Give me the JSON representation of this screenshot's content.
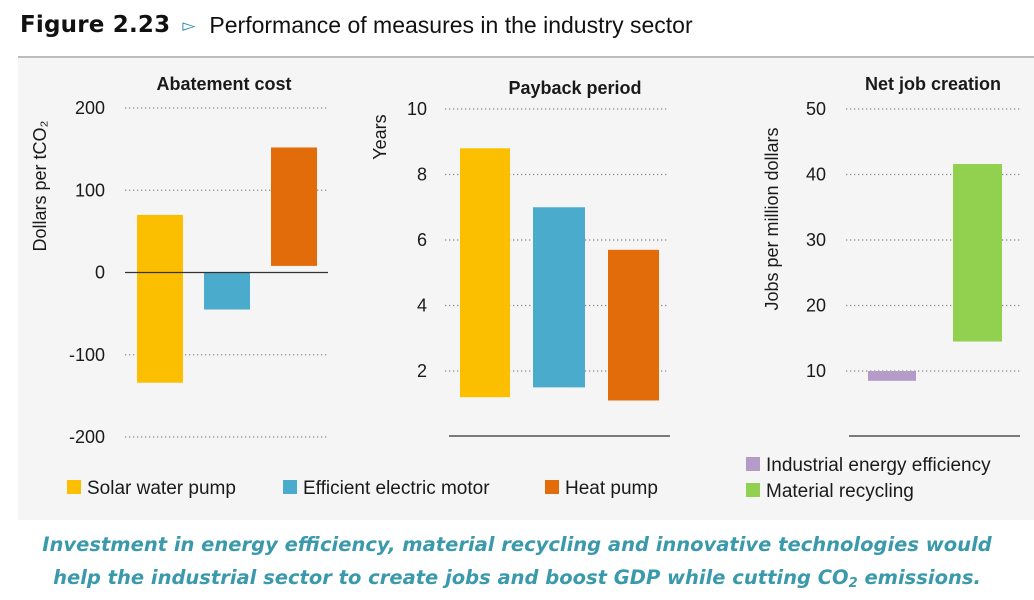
{
  "figure": {
    "number": "Figure 2.23",
    "arrow": "▻",
    "title": "Performance of measures in the industry sector"
  },
  "colors": {
    "solar_water_pump": "#fbbf00",
    "efficient_electric_motor": "#4aabcc",
    "heat_pump": "#e26b0a",
    "industrial_energy_efficiency": "#b59cc8",
    "material_recycling": "#92d050",
    "caption": "#3a9aab"
  },
  "chart_data": [
    {
      "type": "bar",
      "subtype": "floating-range",
      "title": "Abatement cost",
      "ylabel": "Dollars per tCO₂",
      "ylim": [
        -200,
        200
      ],
      "yticks": [
        200,
        100,
        0,
        -100,
        -200
      ],
      "ytick_labels": [
        "200",
        "100",
        "0",
        "-100",
        "-200"
      ],
      "grid": "dotted",
      "categories": [
        "Solar water pump",
        "Efficient electric motor",
        "Heat pump"
      ],
      "ranges": [
        [
          -134,
          70
        ],
        [
          -45,
          0
        ],
        [
          8,
          152
        ]
      ]
    },
    {
      "type": "bar",
      "subtype": "floating-range",
      "title": "Payback period",
      "ylabel": "Years",
      "ylim": [
        0.2,
        10
      ],
      "yticks": [
        10,
        8,
        6,
        4,
        2
      ],
      "ytick_labels": [
        "10",
        "8",
        "6",
        "4",
        "2"
      ],
      "grid": "dotted",
      "categories": [
        "Solar water pump",
        "Efficient electric motor",
        "Heat pump"
      ],
      "ranges": [
        [
          1.2,
          8.8
        ],
        [
          1.5,
          7.0
        ],
        [
          1.1,
          5.7
        ]
      ]
    },
    {
      "type": "bar",
      "subtype": "floating-range",
      "title": "Net job creation",
      "ylabel": "Jobs per million dollars",
      "ylim": [
        0,
        50
      ],
      "yticks": [
        50,
        40,
        30,
        20,
        10
      ],
      "ytick_labels": [
        "50",
        "40",
        "30",
        "20",
        "10"
      ],
      "grid": "dotted",
      "categories": [
        "Industrial energy efficiency",
        "Material recycling"
      ],
      "ranges": [
        [
          8.5,
          10
        ],
        [
          14.5,
          41.6
        ]
      ]
    }
  ],
  "legend_left": [
    {
      "label": "Solar water pump",
      "color": "#fbbf00"
    },
    {
      "label": "Efficient electric motor",
      "color": "#4aabcc"
    },
    {
      "label": "Heat pump",
      "color": "#e26b0a"
    }
  ],
  "legend_right": [
    {
      "label": "Industrial energy efficiency",
      "color": "#b59cc8"
    },
    {
      "label": "Material recycling",
      "color": "#92d050"
    }
  ],
  "caption": {
    "line1": "Investment in energy efficiency, material recycling and innovative technologies would",
    "line2_prefix": "help the industrial sector to create jobs and boost GDP while cutting CO",
    "line2_sub": "2",
    "line2_suffix": " emissions."
  }
}
